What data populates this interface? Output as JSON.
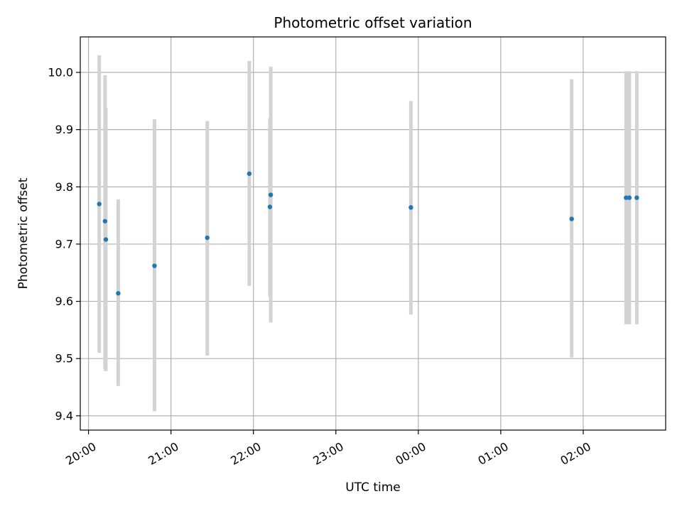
{
  "chart_data": {
    "type": "scatter",
    "title": "Photometric offset variation",
    "xlabel": "UTC time",
    "ylabel": "Photometric offset",
    "x_unit": "hours (UTC clock, values past 24 are after midnight)",
    "xlim": [
      19.9,
      27.0
    ],
    "ylim": [
      9.375,
      10.062
    ],
    "x_ticks": [
      {
        "value": 20,
        "label": "20:00"
      },
      {
        "value": 21,
        "label": "21:00"
      },
      {
        "value": 22,
        "label": "22:00"
      },
      {
        "value": 23,
        "label": "23:00"
      },
      {
        "value": 24,
        "label": "00:00"
      },
      {
        "value": 25,
        "label": "01:00"
      },
      {
        "value": 26,
        "label": "02:00"
      }
    ],
    "y_ticks": [
      {
        "value": 9.4,
        "label": "9.4"
      },
      {
        "value": 9.5,
        "label": "9.5"
      },
      {
        "value": 9.6,
        "label": "9.6"
      },
      {
        "value": 9.7,
        "label": "9.7"
      },
      {
        "value": 9.8,
        "label": "9.8"
      },
      {
        "value": 9.9,
        "label": "9.9"
      },
      {
        "value": 10.0,
        "label": "10.0"
      }
    ],
    "grid": true,
    "colors": {
      "point": "#1f77b4",
      "errorbar": "#d3d3d3",
      "grid": "#b0b0b0"
    },
    "points": [
      {
        "x": 20.13,
        "y": 9.77,
        "err_low": 9.51,
        "err_high": 10.03
      },
      {
        "x": 20.2,
        "y": 9.74,
        "err_low": 9.482,
        "err_high": 9.995
      },
      {
        "x": 20.21,
        "y": 9.708,
        "err_low": 9.478,
        "err_high": 9.938
      },
      {
        "x": 20.36,
        "y": 9.614,
        "err_low": 9.452,
        "err_high": 9.778
      },
      {
        "x": 20.8,
        "y": 9.662,
        "err_low": 9.408,
        "err_high": 9.918
      },
      {
        "x": 21.44,
        "y": 9.711,
        "err_low": 9.505,
        "err_high": 9.915
      },
      {
        "x": 21.95,
        "y": 9.823,
        "err_low": 9.627,
        "err_high": 10.02
      },
      {
        "x": 22.2,
        "y": 9.765,
        "err_low": 9.608,
        "err_high": 9.92
      },
      {
        "x": 22.21,
        "y": 9.786,
        "err_low": 9.563,
        "err_high": 10.01
      },
      {
        "x": 23.91,
        "y": 9.764,
        "err_low": 9.577,
        "err_high": 9.95
      },
      {
        "x": 25.86,
        "y": 9.744,
        "err_low": 9.502,
        "err_high": 9.988
      },
      {
        "x": 26.52,
        "y": 9.781,
        "err_low": 9.56,
        "err_high": 10.002
      },
      {
        "x": 26.56,
        "y": 9.781,
        "err_low": 9.56,
        "err_high": 10.002
      },
      {
        "x": 26.65,
        "y": 9.781,
        "err_low": 9.56,
        "err_high": 10.002
      }
    ]
  }
}
